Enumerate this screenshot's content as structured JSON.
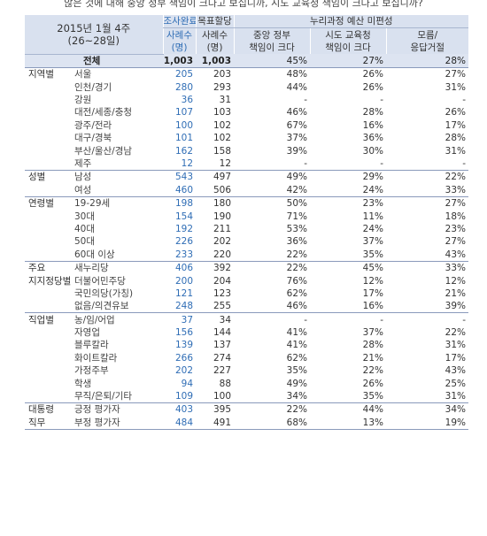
{
  "caption": "않은 것에 대해 중앙 정부 책임이 크다고 보십니까, 시도 교육청 책임이 크다고 보십니까?",
  "header": {
    "period_line1": "2015년 1월 4주",
    "period_line2": "(26~28일)",
    "col_sample_top": "조사완료",
    "col_sample_mid": "사례수",
    "col_sample_unit": "(명)",
    "col_target_top": "목표할당",
    "col_target_mid": "사례수",
    "col_target_unit": "(명)",
    "group_title": "누리과정 예산 미편성",
    "col_a_line1": "중앙 정부",
    "col_a_line2": "책임이 크다",
    "col_b_line1": "시도 교육청",
    "col_b_line2": "책임이 크다",
    "col_c_line1": "모름/",
    "col_c_line2": "응답거절"
  },
  "total": {
    "label": "전체",
    "n1": "1,003",
    "n2": "1,003",
    "a": "45%",
    "b": "27%",
    "c": "28%"
  },
  "rows": [
    {
      "group": "지역별",
      "label": "서울",
      "n1": "205",
      "n2": "203",
      "a": "48%",
      "b": "26%",
      "c": "27%",
      "sep": true
    },
    {
      "group": "",
      "label": "인천/경기",
      "n1": "280",
      "n2": "293",
      "a": "44%",
      "b": "26%",
      "c": "31%"
    },
    {
      "group": "",
      "label": "강원",
      "n1": "36",
      "n2": "31",
      "a": "-",
      "b": "-",
      "c": "-"
    },
    {
      "group": "",
      "label": "대전/세종/충청",
      "n1": "107",
      "n2": "103",
      "a": "46%",
      "b": "28%",
      "c": "26%"
    },
    {
      "group": "",
      "label": "광주/전라",
      "n1": "100",
      "n2": "102",
      "a": "67%",
      "b": "16%",
      "c": "17%"
    },
    {
      "group": "",
      "label": "대구/경북",
      "n1": "101",
      "n2": "102",
      "a": "37%",
      "b": "36%",
      "c": "28%"
    },
    {
      "group": "",
      "label": "부산/울산/경남",
      "n1": "162",
      "n2": "158",
      "a": "39%",
      "b": "30%",
      "c": "31%"
    },
    {
      "group": "",
      "label": "제주",
      "n1": "12",
      "n2": "12",
      "a": "-",
      "b": "-",
      "c": "-"
    },
    {
      "group": "성별",
      "label": "남성",
      "n1": "543",
      "n2": "497",
      "a": "49%",
      "b": "29%",
      "c": "22%",
      "sep": true
    },
    {
      "group": "",
      "label": "여성",
      "n1": "460",
      "n2": "506",
      "a": "42%",
      "b": "24%",
      "c": "33%"
    },
    {
      "group": "연령별",
      "label": "19-29세",
      "n1": "198",
      "n2": "180",
      "a": "50%",
      "b": "23%",
      "c": "27%",
      "sep": true
    },
    {
      "group": "",
      "label": "30대",
      "n1": "154",
      "n2": "190",
      "a": "71%",
      "b": "11%",
      "c": "18%"
    },
    {
      "group": "",
      "label": "40대",
      "n1": "192",
      "n2": "211",
      "a": "53%",
      "b": "24%",
      "c": "23%"
    },
    {
      "group": "",
      "label": "50대",
      "n1": "226",
      "n2": "202",
      "a": "36%",
      "b": "37%",
      "c": "27%"
    },
    {
      "group": "",
      "label": "60대 이상",
      "n1": "233",
      "n2": "220",
      "a": "22%",
      "b": "35%",
      "c": "43%"
    },
    {
      "group": "주요",
      "label": "새누리당",
      "n1": "406",
      "n2": "392",
      "a": "22%",
      "b": "45%",
      "c": "33%",
      "sep": true
    },
    {
      "group": "지지정당별",
      "label": "더불어민주당",
      "n1": "200",
      "n2": "204",
      "a": "76%",
      "b": "12%",
      "c": "12%"
    },
    {
      "group": "",
      "label": "국민의당(가칭)",
      "n1": "121",
      "n2": "123",
      "a": "62%",
      "b": "17%",
      "c": "21%"
    },
    {
      "group": "",
      "label": "없음/의견유보",
      "n1": "248",
      "n2": "255",
      "a": "46%",
      "b": "16%",
      "c": "39%"
    },
    {
      "group": "직업별",
      "label": "농/임/어업",
      "n1": "37",
      "n2": "34",
      "a": "-",
      "b": "-",
      "c": "-",
      "sep": true
    },
    {
      "group": "",
      "label": "자영업",
      "n1": "156",
      "n2": "144",
      "a": "41%",
      "b": "37%",
      "c": "22%"
    },
    {
      "group": "",
      "label": "블루칼라",
      "n1": "139",
      "n2": "137",
      "a": "41%",
      "b": "28%",
      "c": "31%"
    },
    {
      "group": "",
      "label": "화이트칼라",
      "n1": "266",
      "n2": "274",
      "a": "62%",
      "b": "21%",
      "c": "17%"
    },
    {
      "group": "",
      "label": "가정주부",
      "n1": "202",
      "n2": "227",
      "a": "35%",
      "b": "22%",
      "c": "43%"
    },
    {
      "group": "",
      "label": "학생",
      "n1": "94",
      "n2": "88",
      "a": "49%",
      "b": "26%",
      "c": "25%"
    },
    {
      "group": "",
      "label": "무직/은퇴/기타",
      "n1": "109",
      "n2": "100",
      "a": "34%",
      "b": "35%",
      "c": "31%"
    },
    {
      "group": "대통령",
      "label": "긍정 평가자",
      "n1": "403",
      "n2": "395",
      "a": "22%",
      "b": "44%",
      "c": "34%",
      "sep": true
    },
    {
      "group": "직무",
      "label": "부정 평가자",
      "n1": "484",
      "n2": "491",
      "a": "68%",
      "b": "13%",
      "c": "19%",
      "last": true
    }
  ]
}
